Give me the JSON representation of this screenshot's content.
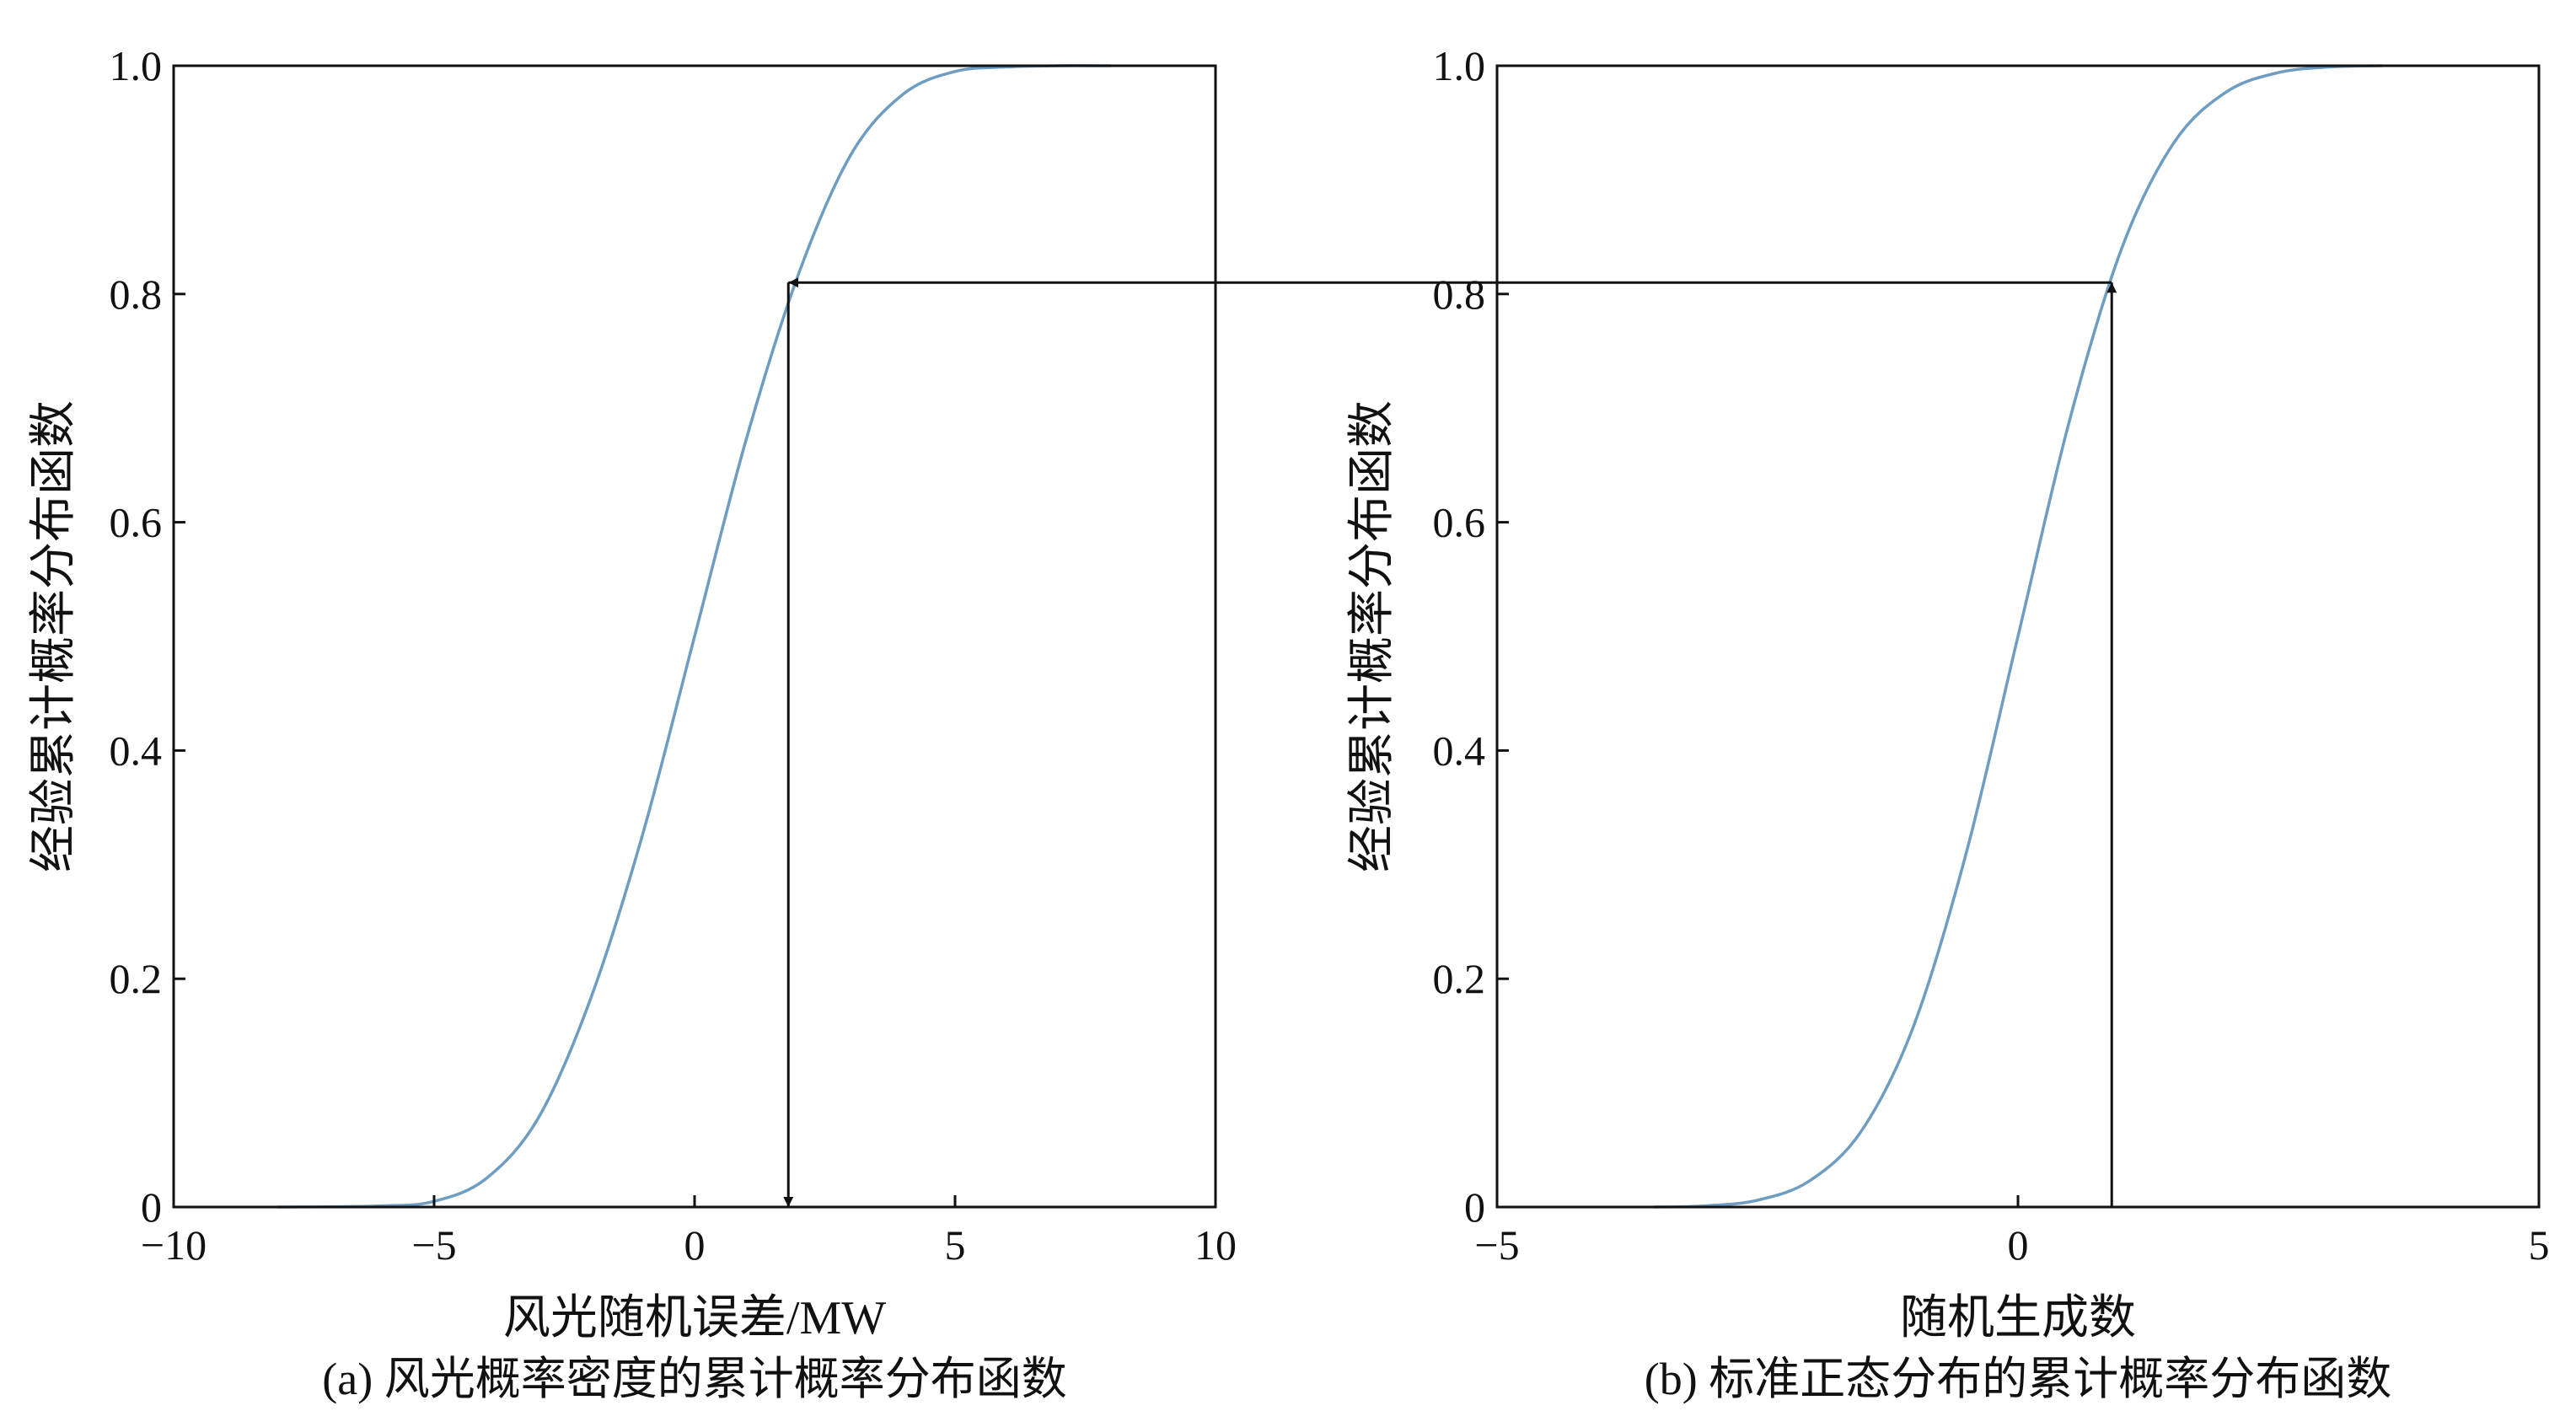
{
  "chart_data": [
    {
      "type": "line",
      "panel": "a",
      "caption": "(a) 风光概率密度的累计概率分布函数",
      "xlabel": "风光随机误差/MW",
      "ylabel": "经验累计概率分布函数",
      "xlim": [
        -10,
        10
      ],
      "ylim": [
        0,
        1
      ],
      "x_ticks": [
        -10,
        -5,
        0,
        5,
        10
      ],
      "x_tick_labels": [
        "−10",
        "−5",
        "0",
        "5",
        "10"
      ],
      "y_ticks": [
        0,
        0.2,
        0.4,
        0.6,
        0.8,
        1.0
      ],
      "y_tick_labels": [
        "0",
        "0.2",
        "0.4",
        "0.6",
        "0.8",
        "1.0"
      ],
      "grid": false,
      "series": [
        {
          "x": [
            -8,
            -6,
            -5,
            -4,
            -3,
            -2,
            -1,
            0,
            1,
            2,
            3,
            4,
            5,
            6,
            7,
            8
          ],
          "y": [
            0.0,
            0.001,
            0.005,
            0.025,
            0.078,
            0.182,
            0.326,
            0.5,
            0.674,
            0.818,
            0.922,
            0.975,
            0.995,
            0.999,
            1.0,
            1.0
          ],
          "color": "#6f9cc1"
        }
      ],
      "marker_x": 1.8,
      "marker_y": 0.81
    },
    {
      "type": "line",
      "panel": "b",
      "caption": "(b) 标准正态分布的累计概率分布函数",
      "xlabel": "随机生成数",
      "ylabel": "经验累计概率分布函数",
      "xlim": [
        -5,
        5
      ],
      "ylim": [
        0,
        1
      ],
      "x_ticks": [
        -5,
        0,
        5
      ],
      "x_tick_labels": [
        "−5",
        "0",
        "5"
      ],
      "y_ticks": [
        0,
        0.2,
        0.4,
        0.6,
        0.8,
        1.0
      ],
      "y_tick_labels": [
        "0",
        "0.2",
        "0.4",
        "0.6",
        "0.8",
        "1.0"
      ],
      "grid": false,
      "series": [
        {
          "x": [
            -3.5,
            -3,
            -2.5,
            -2,
            -1.5,
            -1,
            -0.5,
            0,
            0.5,
            1,
            1.5,
            2,
            2.5,
            3,
            3.5
          ],
          "y": [
            0.0,
            0.001,
            0.006,
            0.023,
            0.067,
            0.159,
            0.309,
            0.5,
            0.691,
            0.841,
            0.933,
            0.977,
            0.994,
            0.999,
            1.0
          ],
          "color": "#6f9cc1"
        }
      ],
      "marker_x": 0.9,
      "marker_y": 0.81
    }
  ]
}
